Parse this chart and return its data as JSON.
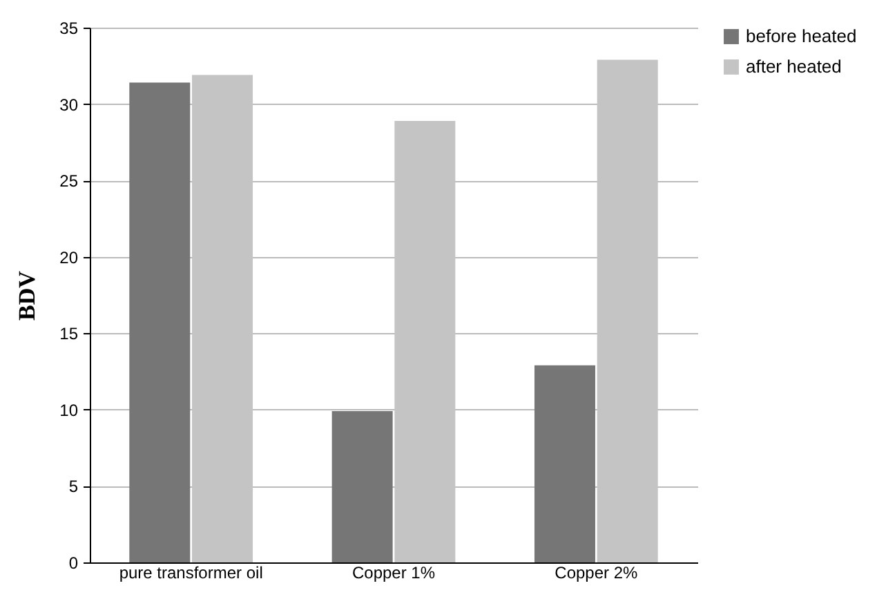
{
  "chart_data": {
    "type": "bar",
    "ylabel": "BDV",
    "categories": [
      "pure transformer oil",
      "Copper 1%",
      "Copper 2%"
    ],
    "series": [
      {
        "name": "before heated",
        "color": "#767676",
        "values": [
          31.4,
          9.9,
          12.9
        ]
      },
      {
        "name": "after heated",
        "color": "#c4c4c4",
        "values": [
          31.9,
          28.9,
          32.9
        ]
      }
    ],
    "ylim": [
      0,
      35
    ],
    "yticks": [
      0,
      5,
      10,
      15,
      20,
      25,
      30,
      35
    ],
    "grid": "y",
    "legend": "right"
  }
}
